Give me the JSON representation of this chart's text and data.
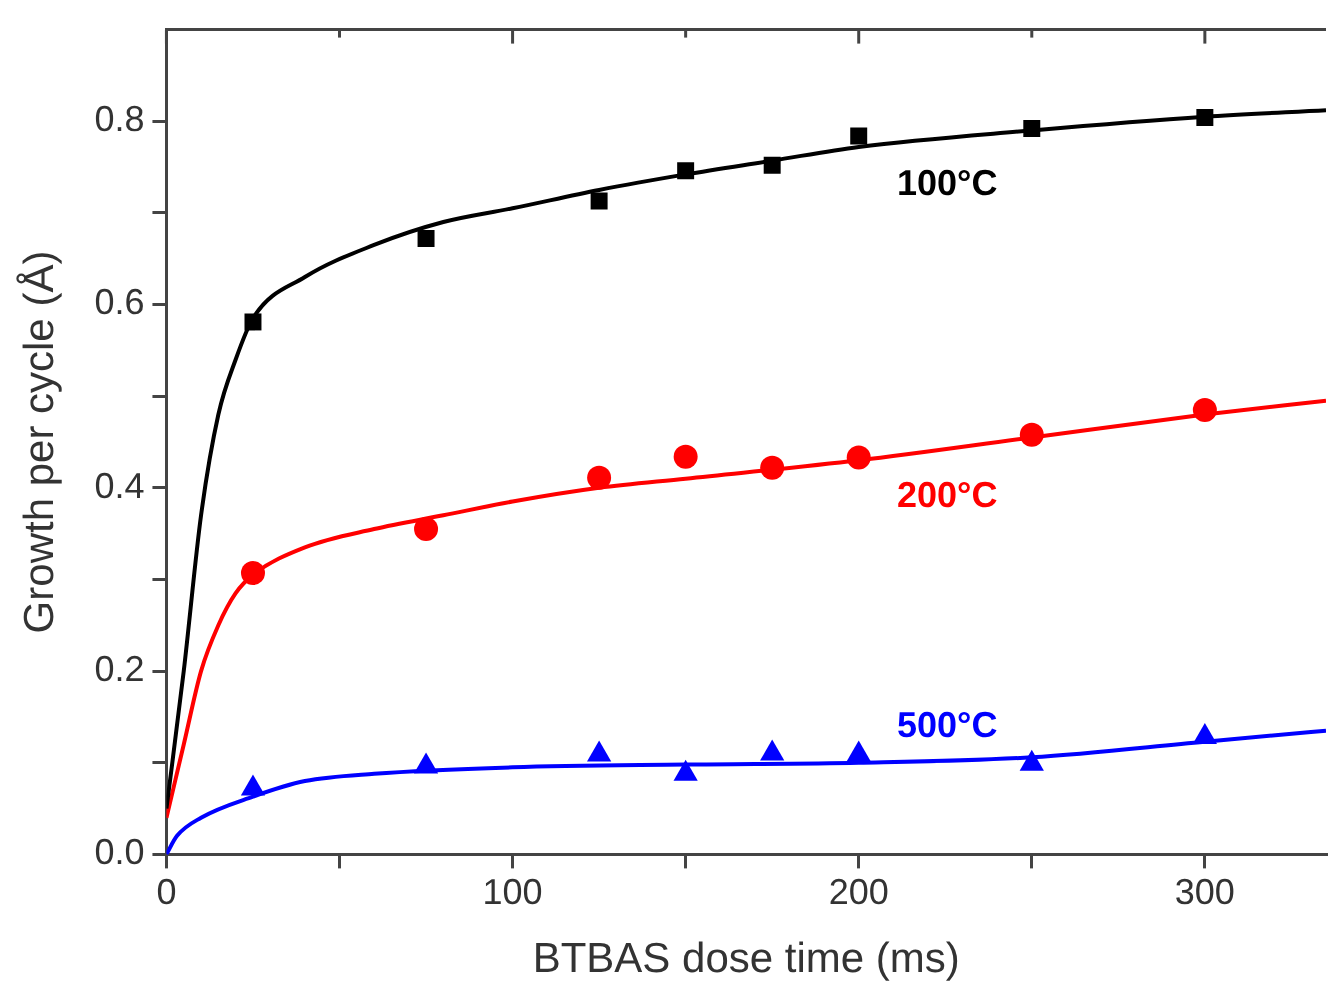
{
  "chart_data": {
    "type": "scatter",
    "xlabel": "BTBAS dose time (ms)",
    "ylabel": "Growth per cycle (Å)",
    "xlim": [
      0,
      335
    ],
    "ylim": [
      0,
      0.9
    ],
    "xticks": [
      0,
      {
        "value": 50,
        "label": null
      },
      100,
      {
        "value": 150,
        "label": null
      },
      200,
      {
        "value": 250,
        "label": null
      },
      300
    ],
    "yticks": [
      {
        "value": 0,
        "label": "0.0"
      },
      {
        "value": 0.1,
        "label": null
      },
      0.2,
      {
        "value": 0.3,
        "label": null
      },
      0.4,
      {
        "value": 0.5,
        "label": null
      },
      0.6,
      {
        "value": 0.7,
        "label": null
      },
      0.8
    ],
    "grid": false,
    "legend": false,
    "series": [
      {
        "type": "scatter",
        "marker": "square",
        "color": "#000000",
        "x": [
          25,
          75,
          125,
          150,
          175,
          200,
          250,
          300
        ],
        "values": [
          0.581,
          0.672,
          0.713,
          0.746,
          0.752,
          0.784,
          0.792,
          0.804
        ]
      },
      {
        "type": "scatter",
        "marker": "circle",
        "color": "#ff0000",
        "x": [
          25,
          75,
          125,
          150,
          175,
          200,
          250,
          300
        ],
        "values": [
          0.307,
          0.355,
          0.411,
          0.434,
          0.422,
          0.433,
          0.458,
          0.485
        ]
      },
      {
        "type": "scatter",
        "marker": "triangle",
        "color": "#0000ff",
        "x": [
          25,
          75,
          125,
          150,
          175,
          200,
          250,
          300
        ],
        "values": [
          0.072,
          0.096,
          0.109,
          0.088,
          0.11,
          0.109,
          0.099,
          0.128
        ]
      },
      {
        "type": "line",
        "name": "100°C",
        "color": "#000000",
        "marker": "none",
        "x": [
          0,
          5,
          10,
          15,
          20,
          25,
          40,
          60,
          80,
          100,
          125,
          150,
          175,
          200,
          250,
          300,
          335
        ],
        "values": [
          0.05,
          0.2,
          0.37,
          0.48,
          0.54,
          0.585,
          0.63,
          0.665,
          0.69,
          0.705,
          0.725,
          0.742,
          0.757,
          0.772,
          0.79,
          0.805,
          0.812
        ]
      },
      {
        "type": "line",
        "name": "200°C",
        "color": "#ff0000",
        "marker": "none",
        "x": [
          0,
          5,
          10,
          15,
          20,
          25,
          40,
          60,
          80,
          100,
          125,
          150,
          200,
          250,
          300,
          335
        ],
        "values": [
          0.04,
          0.12,
          0.2,
          0.25,
          0.285,
          0.305,
          0.335,
          0.355,
          0.37,
          0.385,
          0.4,
          0.41,
          0.43,
          0.455,
          0.48,
          0.495
        ]
      },
      {
        "type": "line",
        "name": "500°C",
        "color": "#0000ff",
        "marker": "none",
        "x": [
          0,
          3,
          10,
          25,
          40,
          60,
          100,
          150,
          200,
          250,
          300,
          335
        ],
        "values": [
          0,
          0.02,
          0.04,
          0.063,
          0.08,
          0.088,
          0.095,
          0.098,
          0.1,
          0.106,
          0.123,
          0.135
        ]
      }
    ]
  }
}
